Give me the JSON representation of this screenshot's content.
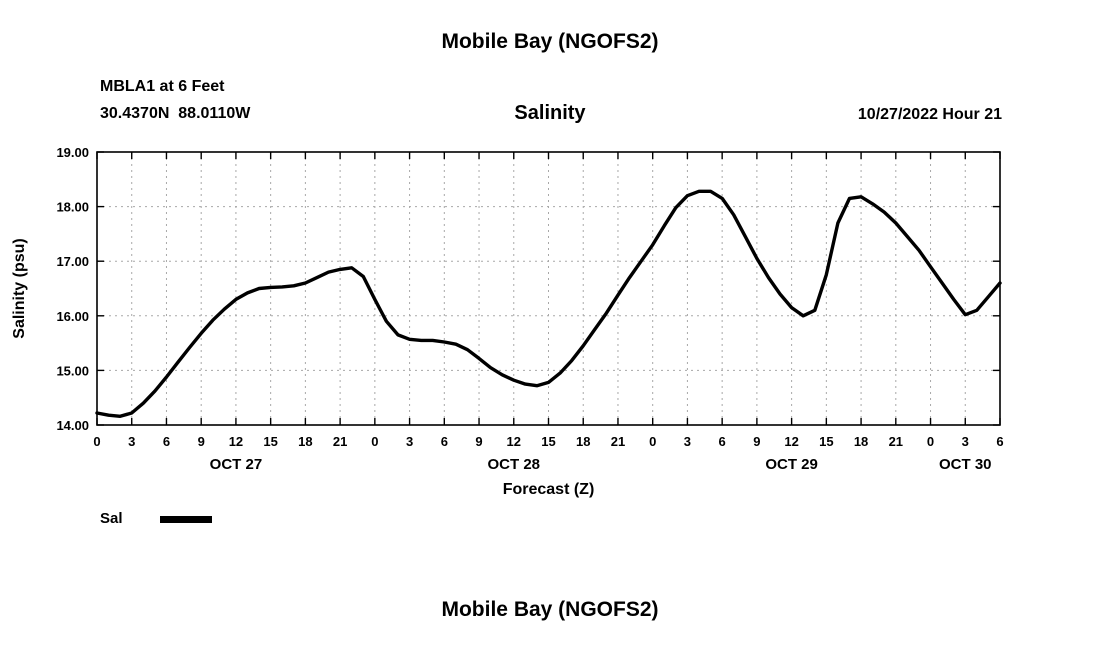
{
  "header": {
    "title": "Mobile Bay (NGOFS2)",
    "station": "MBLA1 at 6 Feet",
    "coordinates": "30.4370N  88.0110W",
    "subtitle": "Salinity",
    "datetime": "10/27/2022 Hour 21"
  },
  "legend": {
    "label": "Sal",
    "swatch_color": "#000000"
  },
  "footer": {
    "title": "Mobile Bay (NGOFS2)"
  },
  "chart_data": {
    "type": "line",
    "title": "Salinity",
    "xlabel": "Forecast (Z)",
    "ylabel": "Salinity (psu)",
    "xlim": [
      0,
      78
    ],
    "ylim": [
      14,
      19
    ],
    "grid": true,
    "x_tick_interval": 3,
    "x_tick_labels": [
      "0",
      "3",
      "6",
      "9",
      "12",
      "15",
      "18",
      "21",
      "0",
      "3",
      "6",
      "9",
      "12",
      "15",
      "18",
      "21",
      "0",
      "3",
      "6",
      "9",
      "12",
      "15",
      "18",
      "21",
      "0",
      "3",
      "6"
    ],
    "y_ticks": [
      {
        "v": 14,
        "label": "14.00"
      },
      {
        "v": 15,
        "label": "15.00"
      },
      {
        "v": 16,
        "label": "16.00"
      },
      {
        "v": 17,
        "label": "17.00"
      },
      {
        "v": 18,
        "label": "18.00"
      },
      {
        "v": 19,
        "label": "19.00"
      }
    ],
    "date_labels": [
      {
        "label": "OCT 27",
        "hour": 12
      },
      {
        "label": "OCT 28",
        "hour": 36
      },
      {
        "label": "OCT 29",
        "hour": 60
      },
      {
        "label": "OCT 30",
        "hour": 75
      }
    ],
    "series": [
      {
        "name": "Sal",
        "color": "#000000",
        "width": 3.4,
        "x_start": 0,
        "x_step": 1,
        "values": [
          14.22,
          14.18,
          14.16,
          14.22,
          14.4,
          14.62,
          14.88,
          15.15,
          15.42,
          15.68,
          15.92,
          16.12,
          16.3,
          16.42,
          16.5,
          16.52,
          16.53,
          16.55,
          16.6,
          16.7,
          16.8,
          16.85,
          16.88,
          16.72,
          16.3,
          15.9,
          15.65,
          15.57,
          15.55,
          15.55,
          15.52,
          15.48,
          15.38,
          15.22,
          15.05,
          14.92,
          14.82,
          14.75,
          14.72,
          14.78,
          14.95,
          15.18,
          15.45,
          15.75,
          16.05,
          16.38,
          16.7,
          17.0,
          17.3,
          17.65,
          17.98,
          18.2,
          18.28,
          18.28,
          18.15,
          17.85,
          17.45,
          17.05,
          16.7,
          16.4,
          16.15,
          16.0,
          16.1,
          16.75,
          17.7,
          18.15,
          18.18,
          18.05,
          17.9,
          17.7,
          17.45,
          17.2,
          16.9,
          16.6,
          16.3,
          16.02,
          16.1,
          16.35,
          16.6
        ]
      }
    ]
  }
}
